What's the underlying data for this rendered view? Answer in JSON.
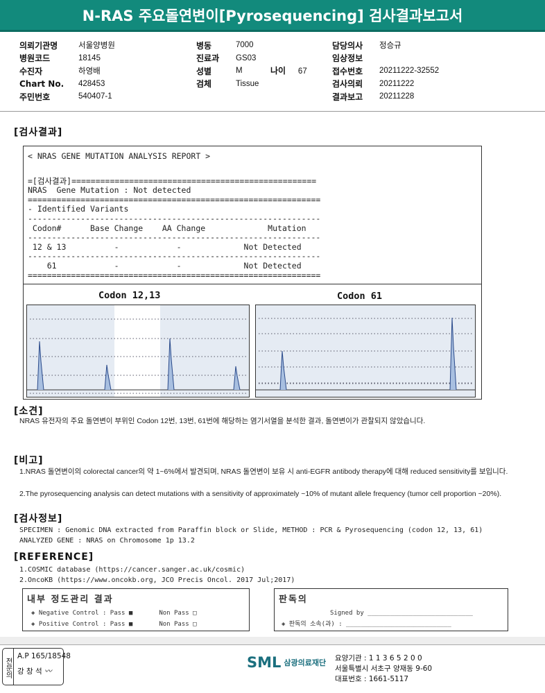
{
  "header": {
    "title": "N-RAS 주요돌연변이[Pyrosequencing] 검사결과보고서"
  },
  "info": {
    "col1": [
      {
        "label": "의뢰기관명",
        "value": "서울양병원"
      },
      {
        "label": "병원코드",
        "value": "18145"
      },
      {
        "label": "수진자",
        "value": "하영배"
      },
      {
        "label": "Chart No.",
        "value": "428453"
      },
      {
        "label": "주민번호",
        "value": "540407-1"
      }
    ],
    "col2": [
      {
        "label": "병동",
        "value": "7000"
      },
      {
        "label": "진료과",
        "value": "GS03"
      },
      {
        "label": "성별",
        "value": "M"
      },
      {
        "label": "검체",
        "value": "Tissue"
      }
    ],
    "age": {
      "label": "나이",
      "value": "67"
    },
    "col3": [
      {
        "label": "담당의사",
        "value": "정승규"
      },
      {
        "label": "임상정보",
        "value": ""
      },
      {
        "label": "접수번호",
        "value": "20211222-32552"
      },
      {
        "label": "검사의뢰",
        "value": "20211222"
      },
      {
        "label": "결과보고",
        "value": "20211228"
      }
    ]
  },
  "sections": {
    "result": "[검사결과]",
    "opinion": "[소견]",
    "remarks": "[비고]",
    "testinfo": "[검사정보]",
    "reference": "[REFERENCE]"
  },
  "report": {
    "lines": [
      "< NRAS GENE MUTATION ANALYSIS REPORT >",
      "",
      "=[검사결과]===================================================",
      "NRAS  Gene Mutation : Not detected",
      "=============================================================",
      "- Identified Variants",
      "-------------------------------------------------------------",
      " Codon#      Base Change    AA Change             Mutation",
      "-------------------------------------------------------------",
      " 12 & 13          -            -             Not Detected",
      "-------------------------------------------------------------",
      "    61            -            -             Not Detected",
      "============================================================="
    ]
  },
  "charts": {
    "left_title": "Codon 12,13",
    "right_title": "Codon 61"
  },
  "opinion": {
    "text": "NRAS 유전자의 주요 돌연변이 부위인 Codon 12번, 13번, 61번에 해당하는 염기서열을 분석한 결과, 돌연변이가 관찰되지 않았습니다."
  },
  "remarks": [
    "1.NRAS 돌연변이의 colorectal cancer의 약 1~6%에서 발견되며, NRAS 돌연변이 보유 시 anti-EGFR antibody therapy에 대해 reduced sensitivity를 보입니다.",
    "2.The pyrosequencing analysis can detect mutations with a sensitivity of approximately ~10% of mutant allele frequency (tumor cell proportion ~20%)."
  ],
  "testinfo": [
    "SPECIMEN : Genomic DNA extracted from Paraffin block or Slide, METHOD : PCR & Pyrosequencing (codon 12, 13, 61)",
    "ANALYZED GENE : NRAS on Chromosome 1p 13.2"
  ],
  "references": [
    "1.COSMIC database (https://cancer.sanger.ac.uk/cosmic)",
    "2.OncoKB (https://www.oncokb.org, JCO Precis Oncol. 2017 Jul;2017)"
  ],
  "qc": {
    "title": "내부 정도관리 결과",
    "rows": [
      {
        "label": "◈ Negative Control : Pass ■",
        "nonpass": "Non Pass □"
      },
      {
        "label": "◈ Positive Control : Pass ■",
        "nonpass": "Non Pass □"
      }
    ]
  },
  "reader": {
    "title": "판독의",
    "signed": "Signed by ____________________________",
    "dept": "◈ 판독의 소속(과) : ____________________________"
  },
  "footer": {
    "stamp_label": "전문의",
    "ap": "A.P 165/18548",
    "doctor": "강 창 석",
    "logo": "SML",
    "org": "삼광의료재단",
    "code": "요양기관 : 1 1 3 6 5 2 0 0",
    "address": "서울특별시 서초구 양재동 9-60",
    "phone": "대표번호 : 1661-5117"
  },
  "colors": {
    "header": "#128a7c",
    "plot_bg": "#e5ebf3",
    "peak": "#2a4a8a",
    "logo": "#1b6f7e"
  }
}
